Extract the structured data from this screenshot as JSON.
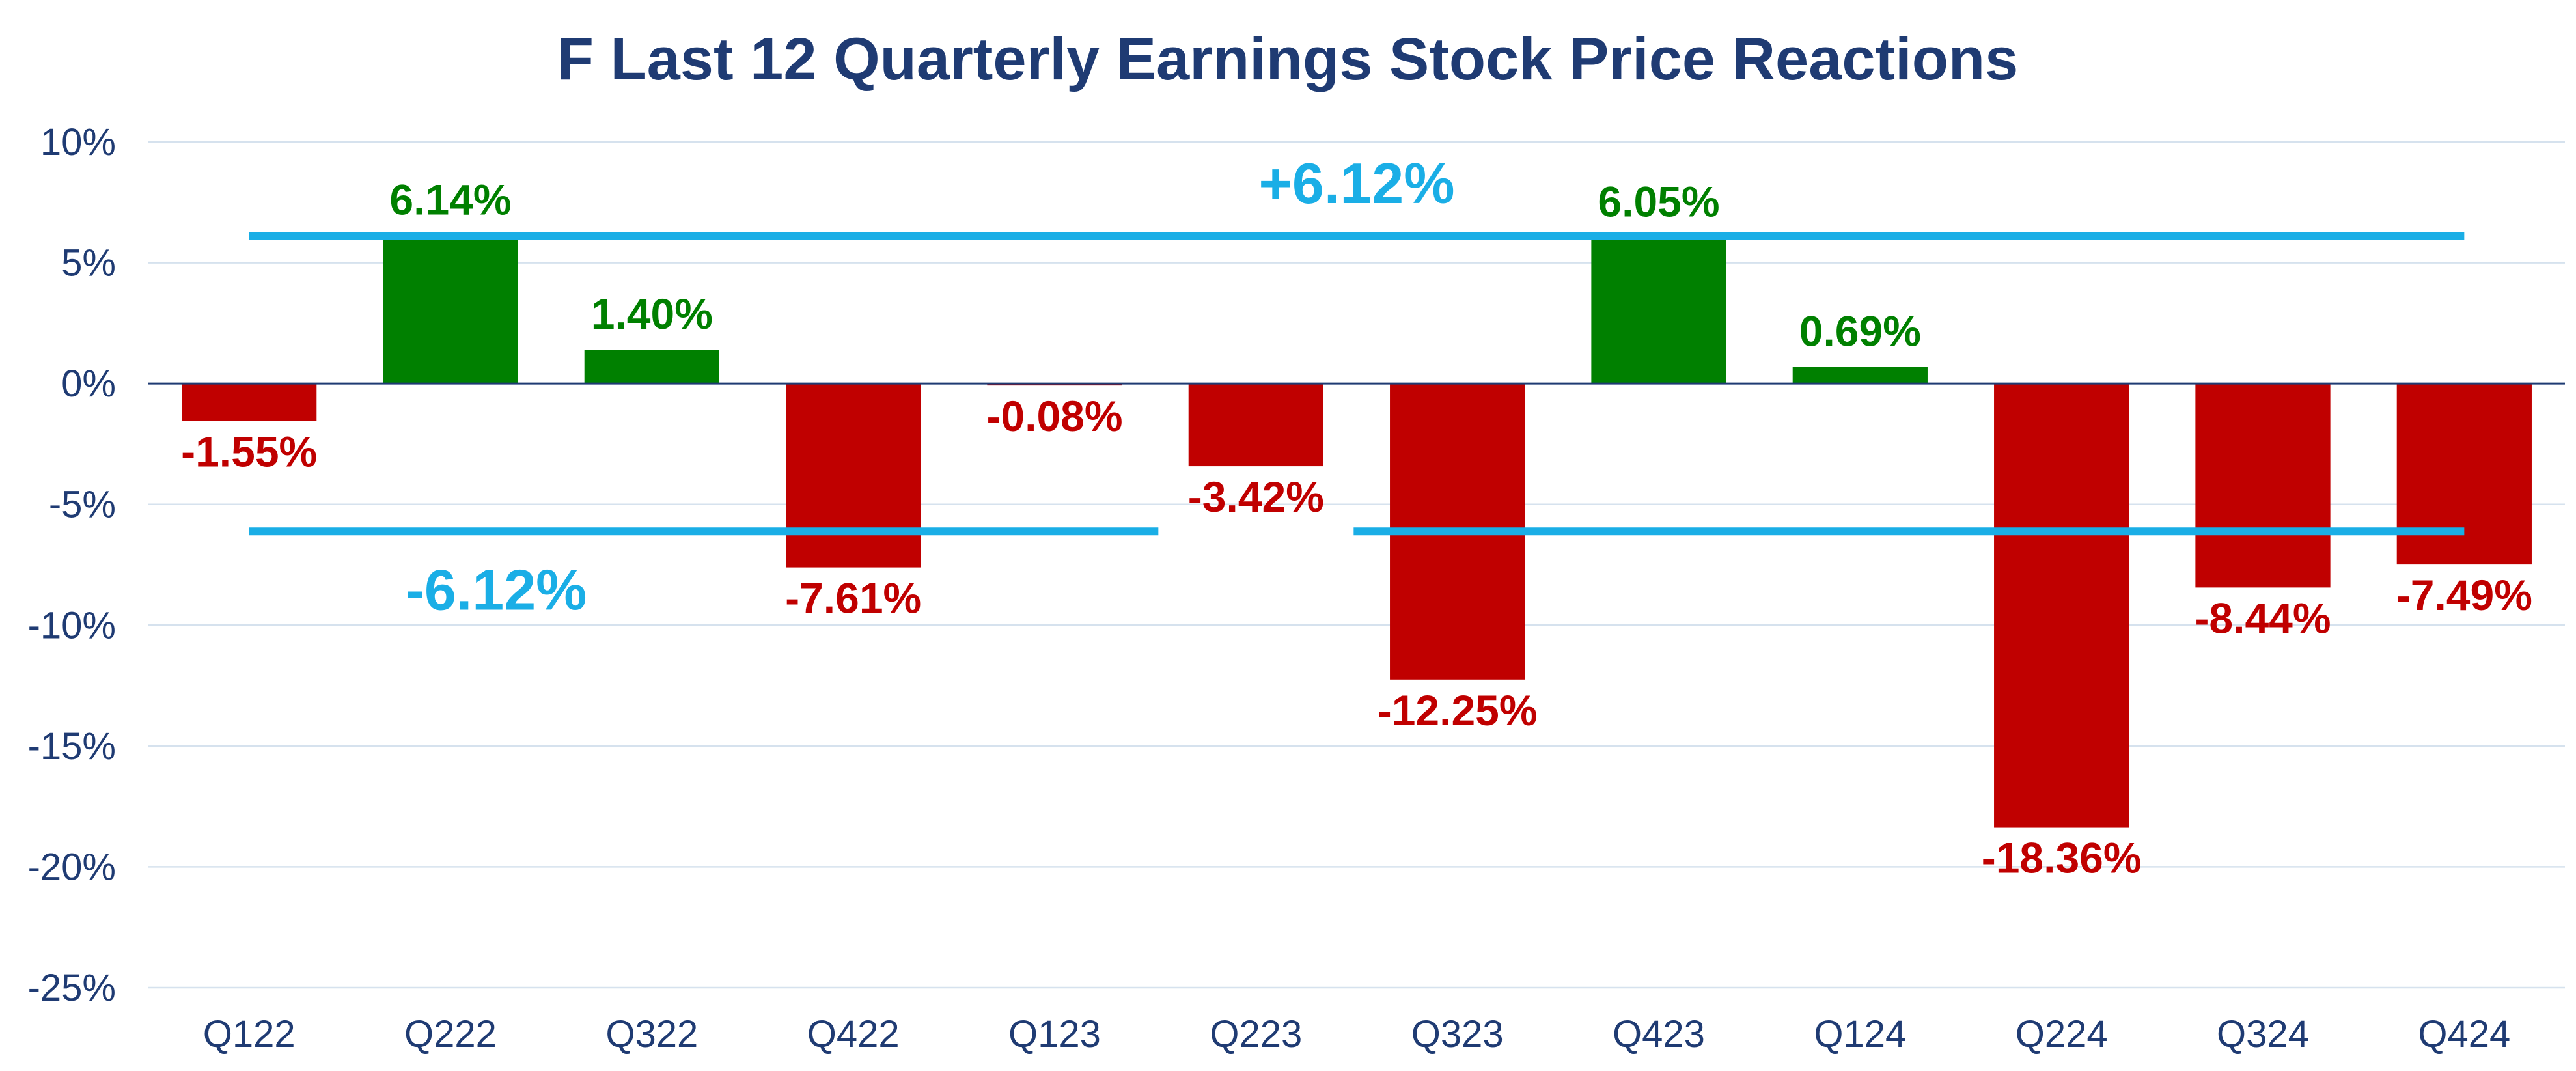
{
  "chart_data": {
    "type": "bar",
    "title": "F Last 12 Quarterly Earnings Stock Price Reactions",
    "xlabel": "",
    "ylabel": "",
    "categories": [
      "Q122",
      "Q222",
      "Q322",
      "Q422",
      "Q123",
      "Q223",
      "Q323",
      "Q423",
      "Q124",
      "Q224",
      "Q324",
      "Q424"
    ],
    "values": [
      -1.55,
      6.14,
      1.4,
      -7.61,
      -0.08,
      -3.42,
      -12.25,
      6.05,
      0.69,
      -18.36,
      -8.44,
      -7.49
    ],
    "data_labels": [
      "-1.55%",
      "6.14%",
      "1.40%",
      "-7.61%",
      "-0.08%",
      "-3.42%",
      "-12.25%",
      "6.05%",
      "0.69%",
      "-18.36%",
      "-8.44%",
      "-7.49%"
    ],
    "ylim": [
      -25,
      10
    ],
    "yticks": [
      10,
      5,
      0,
      -5,
      -10,
      -15,
      -20,
      -25
    ],
    "ytick_labels": [
      "10%",
      "5%",
      "0%",
      "-5%",
      "-10%",
      "-15%",
      "-20%",
      "-25%"
    ],
    "grid": true,
    "legend": "none",
    "reference_lines": [
      {
        "name": "average-positive",
        "value": 6.12,
        "label": "+6.12%"
      },
      {
        "name": "average-negative",
        "value": -6.12,
        "label": "-6.12%"
      }
    ],
    "colors": {
      "positive": "#008000",
      "negative": "#c00000",
      "reference": "#1aaee6",
      "axis_text": "#1f3b73",
      "gridline": "#d6e2ee"
    }
  }
}
